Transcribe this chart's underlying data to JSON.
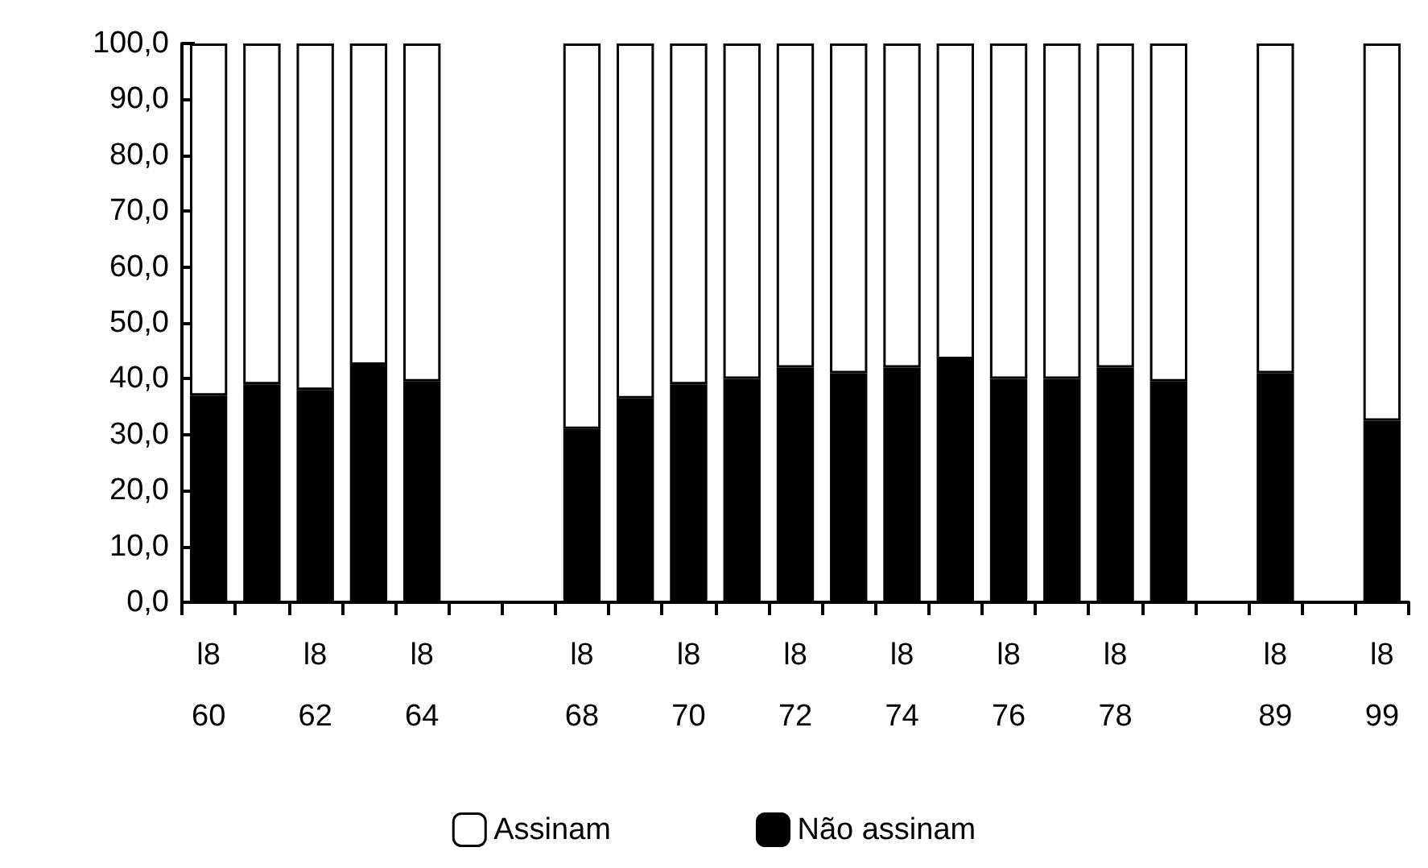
{
  "chart_data": {
    "type": "bar",
    "stacked": true,
    "grid": false,
    "legend": "bottom",
    "categories": [
      "l8\n60",
      null,
      "l8\n62",
      null,
      "l8\n64",
      null,
      null,
      "l8\n68",
      null,
      "l8\n70",
      null,
      "l8\n72",
      null,
      "l8\n74",
      null,
      "l8\n76",
      null,
      "l8\n78",
      null,
      null,
      "l8\n89",
      null,
      "l8\n99"
    ],
    "series": [
      {
        "name": "Não assinam",
        "color": "#000000",
        "values": [
          37,
          39,
          38,
          42.5,
          39.5,
          null,
          null,
          31,
          36.5,
          39,
          40,
          42,
          41,
          42,
          43.5,
          40,
          40,
          42,
          39.5,
          null,
          41,
          null,
          32.5
        ]
      },
      {
        "name": "Assinam",
        "color": "#ffffff",
        "values": [
          63,
          61,
          62,
          57.5,
          60.5,
          null,
          null,
          69,
          63.5,
          61,
          60,
          58,
          59,
          58,
          56.5,
          60,
          60,
          58,
          60.5,
          null,
          59,
          null,
          67.5
        ]
      }
    ],
    "ylim": [
      0,
      100
    ],
    "yticks": [
      {
        "value": 0,
        "label": "0,0"
      },
      {
        "value": 10,
        "label": "10,0"
      },
      {
        "value": 20,
        "label": "20,0"
      },
      {
        "value": 30,
        "label": "30,0"
      },
      {
        "value": 40,
        "label": "40,0"
      },
      {
        "value": 50,
        "label": "50,0"
      },
      {
        "value": 60,
        "label": "60,0"
      },
      {
        "value": 70,
        "label": "70,0"
      },
      {
        "value": 80,
        "label": "80,0"
      },
      {
        "value": 90,
        "label": "90,0"
      },
      {
        "value": 100,
        "label": "100,0"
      }
    ]
  }
}
